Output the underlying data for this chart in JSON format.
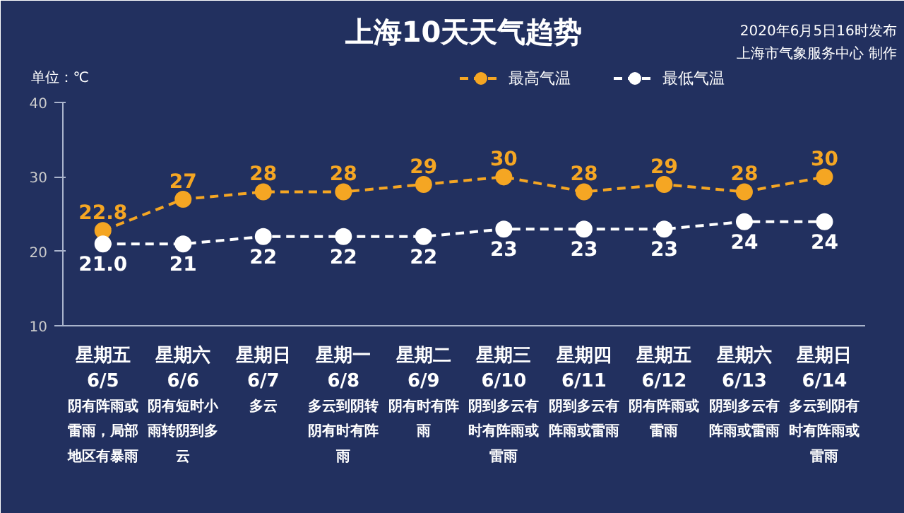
{
  "chart_data": {
    "type": "line",
    "title": "上海10天天气趋势",
    "ylabel": "单位：℃",
    "categories": [
      "星期五\n6/5",
      "星期六\n6/6",
      "星期日\n6/7",
      "星期一\n6/8",
      "星期二\n6/9",
      "星期三\n6/10",
      "星期四\n6/11",
      "星期五\n6/12",
      "星期六\n6/13",
      "星期日\n6/14"
    ],
    "series": [
      {
        "name": "最高气温",
        "color": "#f5a623",
        "values": [
          22.8,
          27,
          28,
          28,
          29,
          30,
          28,
          29,
          28,
          30
        ],
        "value_labels": [
          "22.8",
          "27",
          "28",
          "28",
          "29",
          "30",
          "28",
          "29",
          "28",
          "30"
        ]
      },
      {
        "name": "最低气温",
        "color": "#ffffff",
        "values": [
          21.0,
          21,
          22,
          22,
          22,
          23,
          23,
          23,
          24,
          24
        ],
        "value_labels": [
          "21.0",
          "21",
          "22",
          "22",
          "22",
          "23",
          "23",
          "23",
          "24",
          "24"
        ]
      }
    ],
    "ylim": [
      10,
      40
    ],
    "yticks": [
      10,
      20,
      30,
      40
    ],
    "grid": false,
    "legend": "top right",
    "marker": "circle",
    "line_style": "dashed",
    "annotations": [
      "2020年6月5日16时发布",
      "上海市气象服务中心 制作",
      "阴有阵雨或雷雨，局部地区有暴雨",
      "阴有短时小雨转阴到多云",
      "多云",
      "多云到阴转阴有时有阵雨",
      "阴有时有阵雨",
      "阴到多云有时有阵雨或雷雨",
      "阴到多云有阵雨或雷雨",
      "阴有阵雨或雷雨",
      "阴到多云有阵雨或雷雨",
      "多云到阴有时有阵雨或雷雨"
    ]
  }
}
